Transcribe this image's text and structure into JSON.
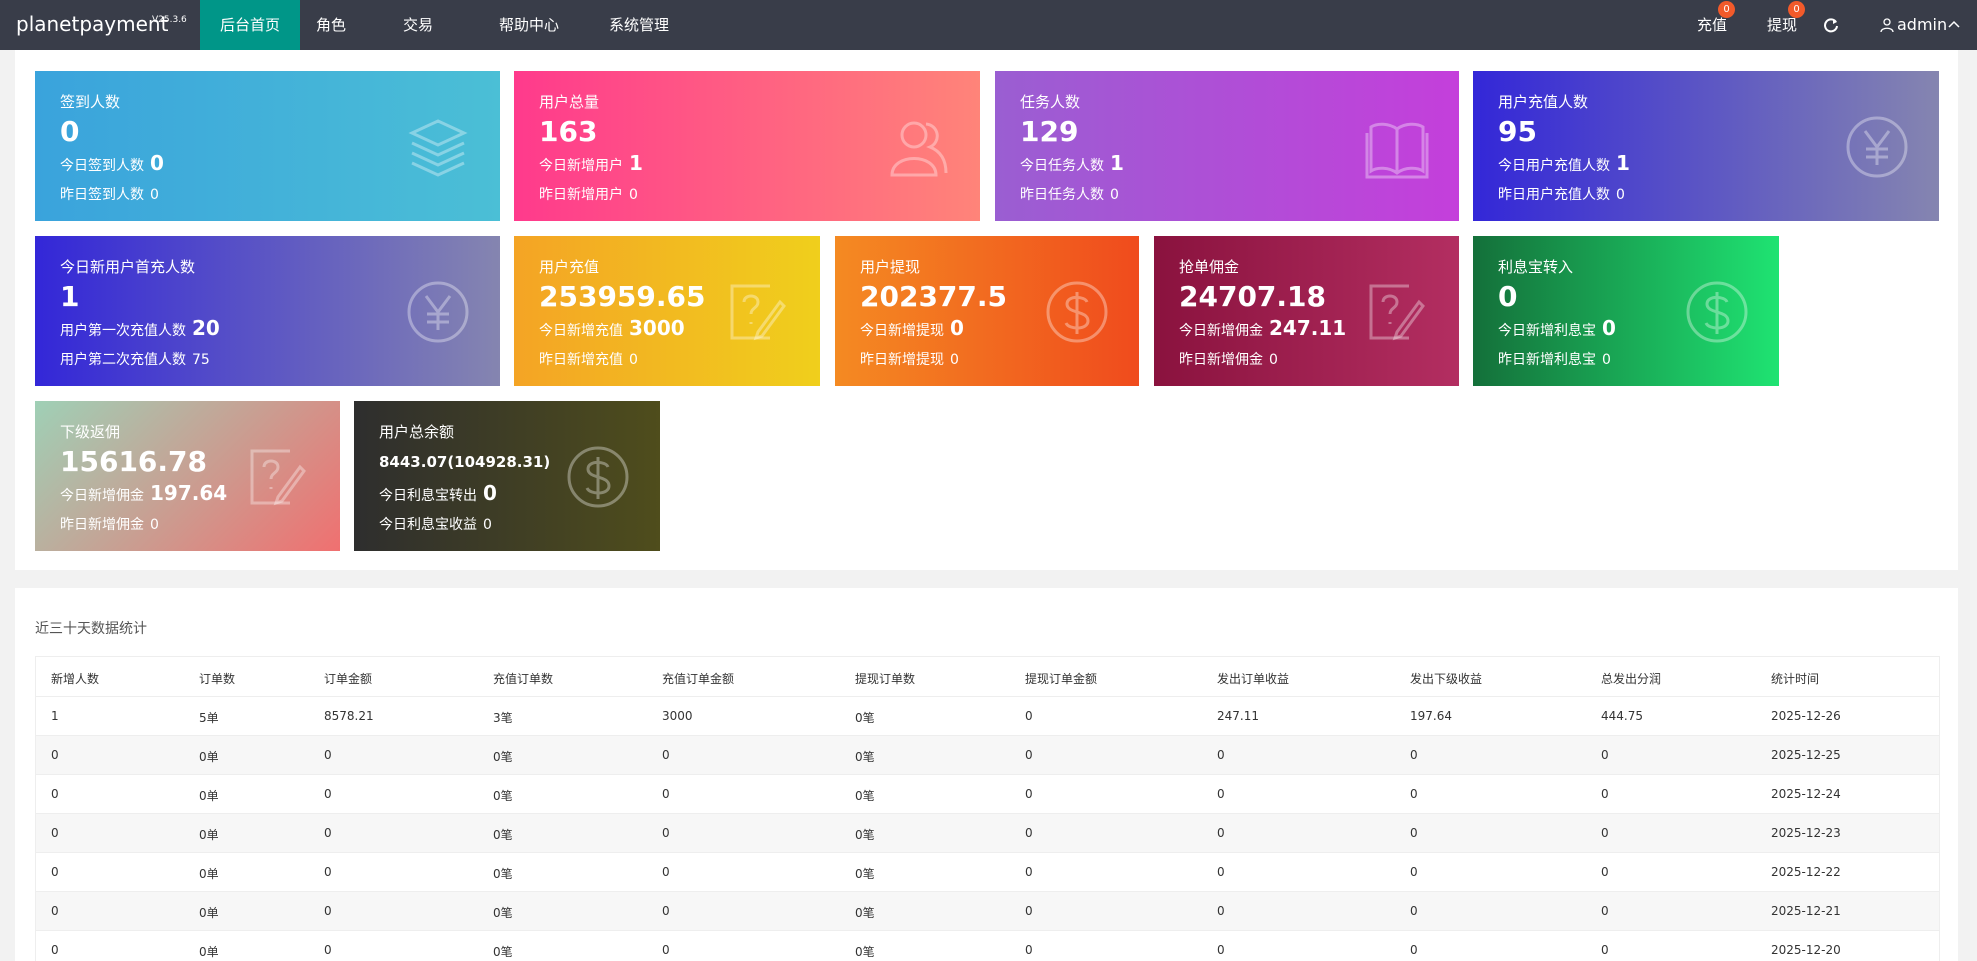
{
  "header": {
    "logo": "planetpayment",
    "version": "V25.3.6",
    "menu": [
      "后台首页",
      "角色",
      "交易",
      "帮助中心",
      "系统管理"
    ],
    "recharge": "充值",
    "recharge_badge": 0,
    "withdraw": "提现",
    "withdraw_badge": 0,
    "user": "admin"
  },
  "cards": [
    {
      "title": "签到人数",
      "value": 0,
      "lines": [
        {
          "label": "今日签到人数",
          "value": 0
        },
        {
          "label": "昨日签到人数",
          "value": 0
        }
      ]
    },
    {
      "title": "用户总量",
      "value": 163,
      "lines": [
        {
          "label": "今日新增用户",
          "value": 1
        },
        {
          "label": "昨日新增用户",
          "value": 0
        }
      ]
    },
    {
      "title": "任务人数",
      "value": 129,
      "lines": [
        {
          "label": "今日任务人数",
          "value": 1
        },
        {
          "label": "昨日任务人数",
          "value": 0
        }
      ]
    },
    {
      "title": "用户充值人数",
      "value": 95,
      "lines": [
        {
          "label": "今日用户充值人数",
          "value": 1
        },
        {
          "label": "昨日用户充值人数",
          "value": 0
        }
      ]
    },
    {
      "title": "今日新用户首充人数",
      "value": 1,
      "lines": [
        {
          "label": "用户第一次充值人数",
          "value": 20
        },
        {
          "label": "用户第二次充值人数",
          "value": 75
        }
      ]
    },
    {
      "title": "用户充值",
      "value": 253959.65,
      "lines": [
        {
          "label": "今日新增充值",
          "value": 3000
        },
        {
          "label": "昨日新增充值",
          "value": 0
        }
      ]
    },
    {
      "title": "用户提现",
      "value": 202377.5,
      "lines": [
        {
          "label": "今日新增提现",
          "value": 0
        },
        {
          "label": "昨日新增提现",
          "value": 0
        }
      ]
    },
    {
      "title": "抢单佣金",
      "value": 24707.18,
      "lines": [
        {
          "label": "今日新增佣金",
          "value": 247.11
        },
        {
          "label": "昨日新增佣金",
          "value": 0
        }
      ]
    },
    {
      "title": "利息宝转入",
      "value": 0,
      "lines": [
        {
          "label": "今日新增利息宝",
          "value": 0
        },
        {
          "label": "昨日新增利息宝",
          "value": 0
        }
      ]
    },
    {
      "title": "下级返佣",
      "value": 15616.78,
      "lines": [
        {
          "label": "今日新增佣金",
          "value": 197.64
        },
        {
          "label": "昨日新增佣金",
          "value": 0
        }
      ]
    },
    {
      "title": "用户总余额",
      "value": "8443.07(104928.31)",
      "lines": [
        {
          "label": "今日利息宝转出",
          "value": 0
        },
        {
          "label": "今日利息宝收益",
          "value": 0
        }
      ]
    }
  ],
  "table": {
    "title": "近三十天数据统计",
    "columns": [
      "新增人数",
      "订单数",
      "订单金额",
      "充值订单数",
      "充值订单金额",
      "提现订单数",
      "提现订单金额",
      "发出订单收益",
      "发出下级收益",
      "总发出分润",
      "统计时间"
    ],
    "rows": [
      [
        1,
        "5单",
        8578.21,
        "3笔",
        3000,
        "0笔",
        0,
        247.11,
        197.64,
        444.75,
        "2025-12-26"
      ],
      [
        0,
        "0单",
        0,
        "0笔",
        0,
        "0笔",
        0,
        0,
        0,
        0,
        "2025-12-25"
      ],
      [
        0,
        "0单",
        0,
        "0笔",
        0,
        "0笔",
        0,
        0,
        0,
        0,
        "2025-12-24"
      ],
      [
        0,
        "0单",
        0,
        "0笔",
        0,
        "0笔",
        0,
        0,
        0,
        0,
        "2025-12-23"
      ],
      [
        0,
        "0单",
        0,
        "0笔",
        0,
        "0笔",
        0,
        0,
        0,
        0,
        "2025-12-22"
      ],
      [
        0,
        "0单",
        0,
        "0笔",
        0,
        "0笔",
        0,
        0,
        0,
        0,
        "2025-12-21"
      ],
      [
        0,
        "0单",
        0,
        "0笔",
        0,
        "0笔",
        0,
        0,
        0,
        0,
        "2025-12-20"
      ]
    ]
  }
}
